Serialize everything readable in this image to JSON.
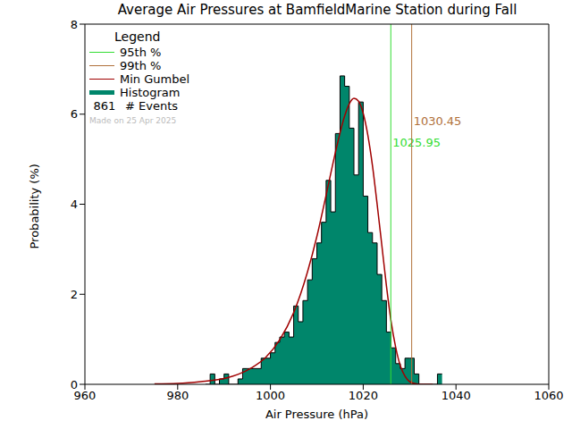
{
  "chart_data": {
    "type": "histogram",
    "title": "Average Air Pressures at BamfieldMarine Station during Fall",
    "x_label": "Air Pressure (hPa)",
    "y_label": "Probability (%)",
    "xlim": [
      960,
      1060
    ],
    "xticks": [
      960,
      980,
      1000,
      1020,
      1040,
      1060
    ],
    "ylim": [
      0,
      8
    ],
    "yticks": [
      0,
      2,
      4,
      6,
      8
    ],
    "legend": "upper left",
    "legend_title": "Legend",
    "series": [
      {
        "name": "Histogram",
        "type": "histogram",
        "color": "#00866b",
        "bins": [
          986,
          987,
          988,
          989,
          990,
          991,
          992,
          993,
          994,
          995,
          996,
          997,
          998,
          999,
          1000,
          1001,
          1002,
          1003,
          1004,
          1005,
          1006,
          1007,
          1008,
          1009,
          1010,
          1011,
          1012,
          1013,
          1014,
          1015,
          1016,
          1017,
          1018,
          1019,
          1020,
          1021,
          1022,
          1023,
          1024,
          1025,
          1026,
          1027,
          1028,
          1029,
          1030,
          1031,
          1032,
          1033,
          1034,
          1035,
          1036,
          1037
        ],
        "values": [
          0,
          0.23,
          0,
          0.12,
          0.23,
          0,
          0,
          0.12,
          0.35,
          0.35,
          0.35,
          0.35,
          0.58,
          0.58,
          0.7,
          0.93,
          1.05,
          1.16,
          1.05,
          1.74,
          1.39,
          1.86,
          2.32,
          2.79,
          3.14,
          3.6,
          4.53,
          3.83,
          5.57,
          6.85,
          6.62,
          5.69,
          4.65,
          6.27,
          4.18,
          3.37,
          3.14,
          2.44,
          1.86,
          1.16,
          0.81,
          0.46,
          0.35,
          0.58,
          0.58,
          0.23,
          0,
          0,
          0,
          0,
          0.23
        ]
      },
      {
        "name": "Min Gumbel",
        "type": "line",
        "color": "#a00000",
        "x": [
          975,
          980,
          985,
          990,
          993,
          996,
          999,
          1002,
          1005,
          1008,
          1010,
          1012,
          1014,
          1016,
          1017,
          1018,
          1019,
          1020,
          1021,
          1022,
          1023,
          1024,
          1025,
          1026,
          1027,
          1028,
          1029,
          1030,
          1032,
          1035
        ],
        "values": [
          0.01,
          0.02,
          0.06,
          0.13,
          0.22,
          0.37,
          0.6,
          0.99,
          1.59,
          2.5,
          3.28,
          4.2,
          5.15,
          5.96,
          6.23,
          6.35,
          6.29,
          6.02,
          5.53,
          4.85,
          4.0,
          3.1,
          2.19,
          1.4,
          0.82,
          0.41,
          0.18,
          0.06,
          0,
          0
        ]
      }
    ],
    "reference_lines": [
      {
        "name": "95th %",
        "x": 1025.95,
        "color": "#33dd33"
      },
      {
        "name": "99th %",
        "x": 1030.45,
        "color": "#b0703a"
      }
    ],
    "events": {
      "name": "# Events",
      "value": 861
    },
    "note": "Made on 25 Apr 2025"
  }
}
